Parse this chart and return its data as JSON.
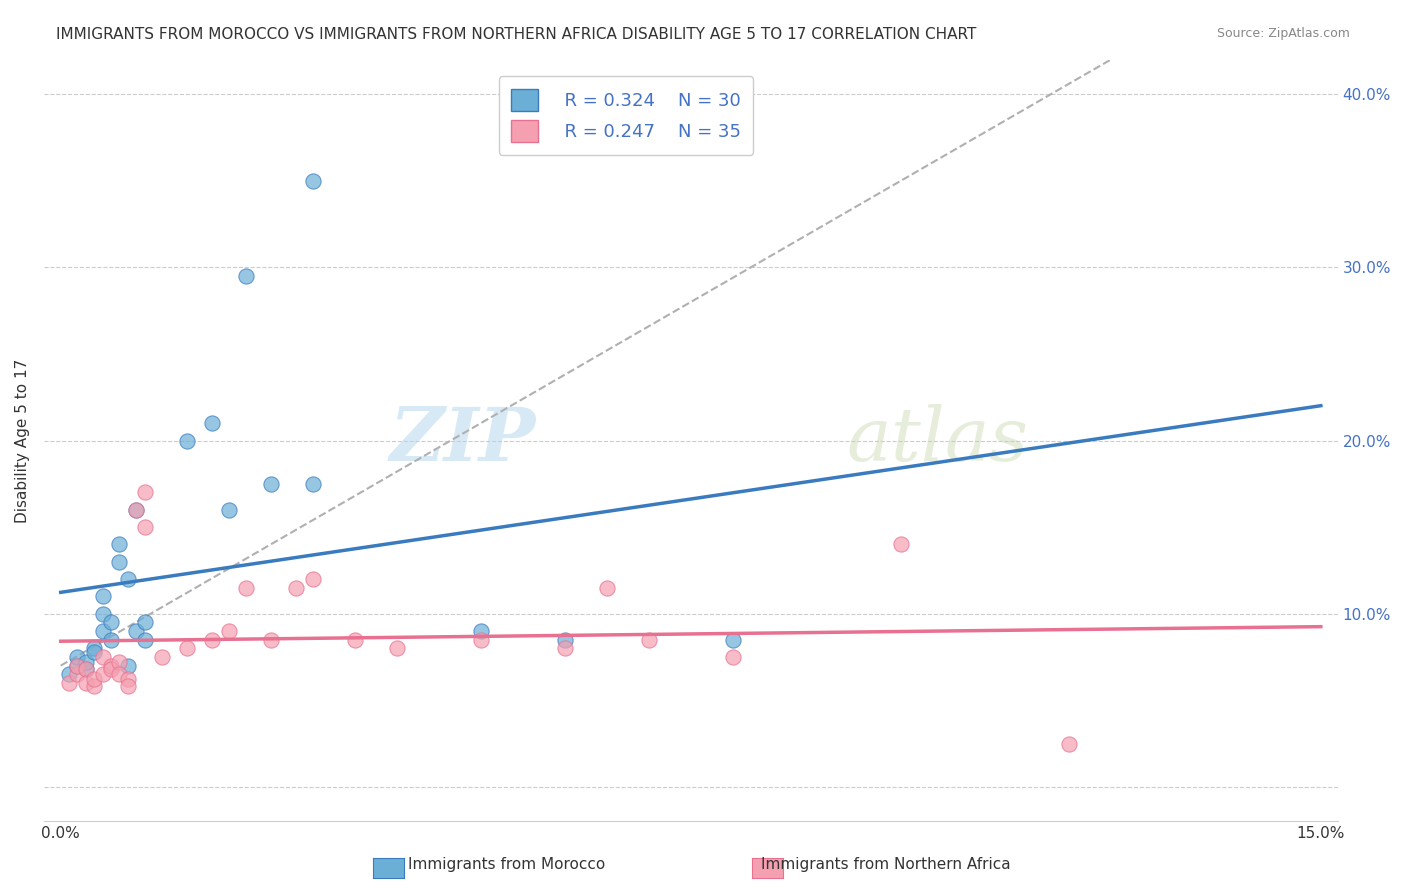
{
  "title": "IMMIGRANTS FROM MOROCCO VS IMMIGRANTS FROM NORTHERN AFRICA DISABILITY AGE 5 TO 17 CORRELATION CHART",
  "source": "Source: ZipAtlas.com",
  "ylabel": "Disability Age 5 to 17",
  "xlim": [
    0,
    0.15
  ],
  "ylim": [
    -0.02,
    0.42
  ],
  "legend_r1": "R = 0.324",
  "legend_n1": "N = 30",
  "legend_r2": "R = 0.247",
  "legend_n2": "N = 35",
  "watermark_zip": "ZIP",
  "watermark_atlas": "atlas",
  "color_morocco": "#6baed6",
  "color_northern": "#f4a0b0",
  "color_line_morocco": "#3a7bbf",
  "color_line_northern": "#e87090",
  "color_trendline_dashed": "#b0b0b0",
  "morocco_x": [
    0.001,
    0.002,
    0.002,
    0.003,
    0.003,
    0.004,
    0.004,
    0.005,
    0.005,
    0.005,
    0.006,
    0.006,
    0.007,
    0.007,
    0.008,
    0.008,
    0.009,
    0.009,
    0.01,
    0.01,
    0.015,
    0.018,
    0.02,
    0.022,
    0.025,
    0.03,
    0.03,
    0.05,
    0.06,
    0.08
  ],
  "morocco_y": [
    0.065,
    0.07,
    0.075,
    0.068,
    0.072,
    0.08,
    0.078,
    0.09,
    0.1,
    0.11,
    0.085,
    0.095,
    0.13,
    0.14,
    0.07,
    0.12,
    0.09,
    0.16,
    0.085,
    0.095,
    0.2,
    0.21,
    0.16,
    0.295,
    0.175,
    0.175,
    0.35,
    0.09,
    0.085,
    0.085
  ],
  "northern_x": [
    0.001,
    0.002,
    0.002,
    0.003,
    0.003,
    0.004,
    0.004,
    0.005,
    0.005,
    0.006,
    0.006,
    0.007,
    0.007,
    0.008,
    0.008,
    0.009,
    0.01,
    0.01,
    0.012,
    0.015,
    0.018,
    0.02,
    0.022,
    0.025,
    0.028,
    0.03,
    0.035,
    0.04,
    0.05,
    0.06,
    0.065,
    0.07,
    0.08,
    0.1,
    0.12
  ],
  "northern_y": [
    0.06,
    0.065,
    0.07,
    0.068,
    0.06,
    0.058,
    0.062,
    0.065,
    0.075,
    0.07,
    0.068,
    0.072,
    0.065,
    0.062,
    0.058,
    0.16,
    0.15,
    0.17,
    0.075,
    0.08,
    0.085,
    0.09,
    0.115,
    0.085,
    0.115,
    0.12,
    0.085,
    0.08,
    0.085,
    0.08,
    0.115,
    0.085,
    0.075,
    0.14,
    0.025
  ],
  "dashed_slope": 2.8,
  "dashed_intercept": 0.07
}
